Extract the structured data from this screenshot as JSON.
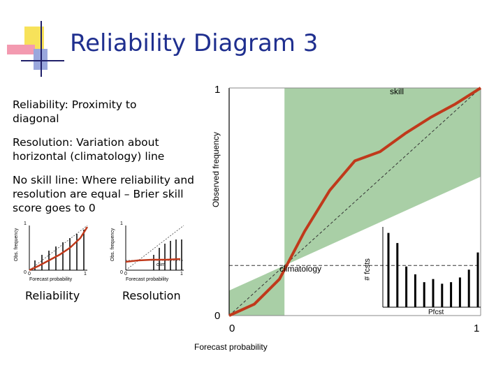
{
  "slide": {
    "title": "Reliability Diagram 3",
    "text_reliability": "Reliability: Proximity to diagonal",
    "text_resolution": "Resolution: Variation about horizontal (climatology) line",
    "text_noskill": "No skill line: Where reliability and resolution are equal – Brier skill score goes to 0"
  },
  "small_plots": [
    {
      "caption": "Reliability",
      "ylabel": "Obs. frequency",
      "xlabel": "Forecast probability",
      "tick0": "0",
      "tick1": "1",
      "ytick1": "1",
      "ytick0": "0",
      "extra": ""
    },
    {
      "caption": "Resolution",
      "ylabel": "Obs. frequency",
      "xlabel": "Forecast probability",
      "tick0": "0",
      "tick1": "1",
      "ytick1": "1",
      "ytick0": "0",
      "extra": "clim"
    }
  ],
  "main_chart": {
    "ylabel": "Observed frequency",
    "xlabel": "Forecast probability",
    "y_top": "1",
    "y_bottom": "0",
    "x_left": "0",
    "x_right": "1",
    "skill_label": "skill",
    "climatology_label": "climatology",
    "inset_ylabel": "# fcsts",
    "inset_xlabel": "Pfcst",
    "colors": {
      "curve": "#c0391b",
      "skill_region": "#a9cfa6",
      "dashed": "#333333"
    }
  },
  "chart_data": {
    "type": "line",
    "x": [
      0.0,
      0.1,
      0.2,
      0.3,
      0.4,
      0.5,
      0.6,
      0.7,
      0.8,
      0.9,
      1.0
    ],
    "series": [
      {
        "values": [
          0.0,
          0.05,
          0.16,
          0.37,
          0.55,
          0.68,
          0.72,
          0.8,
          0.87,
          0.93,
          1.0
        ]
      }
    ],
    "xlim": [
      0,
      1
    ],
    "ylim": [
      0,
      1
    ],
    "climatology": 0.22,
    "forecast_counts": [
      0.95,
      0.82,
      0.52,
      0.42,
      0.32,
      0.36,
      0.3,
      0.32,
      0.38,
      0.48,
      0.7
    ],
    "grid": false
  }
}
